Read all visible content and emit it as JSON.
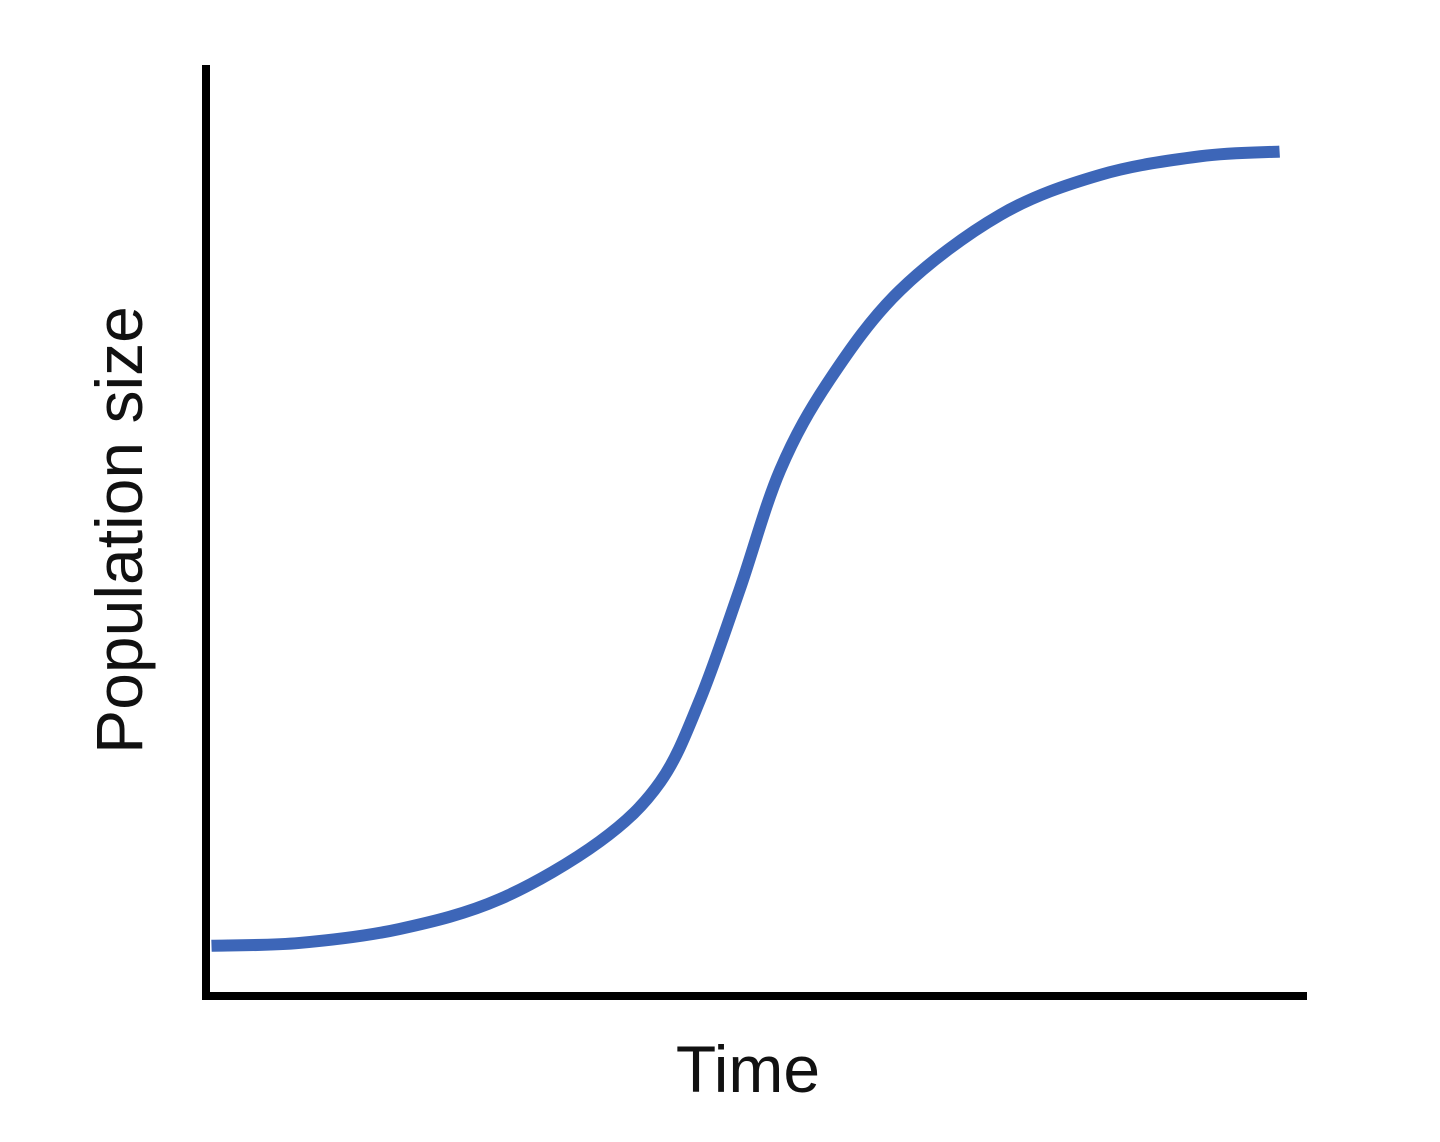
{
  "chart_data": {
    "type": "line",
    "title": "",
    "xlabel": "Time",
    "ylabel": "Population size",
    "xlim": [
      0,
      100
    ],
    "ylim": [
      0,
      100
    ],
    "grid": false,
    "ticks": false,
    "line_color": "#3d66b8",
    "axis_color": "#000000",
    "series": [
      {
        "x": [
          0.5,
          8.5,
          17.6,
          26.7,
          35.8,
          41.3,
          44.9,
          48.5,
          52.2,
          56.7,
          63.1,
          72.2,
          81.3,
          90.4,
          97.6
        ],
        "y": [
          5.4,
          5.7,
          7.2,
          10.4,
          16.6,
          23.0,
          31.8,
          43.6,
          56.5,
          66.2,
          75.8,
          83.9,
          88.2,
          90.2,
          90.7
        ]
      }
    ]
  }
}
